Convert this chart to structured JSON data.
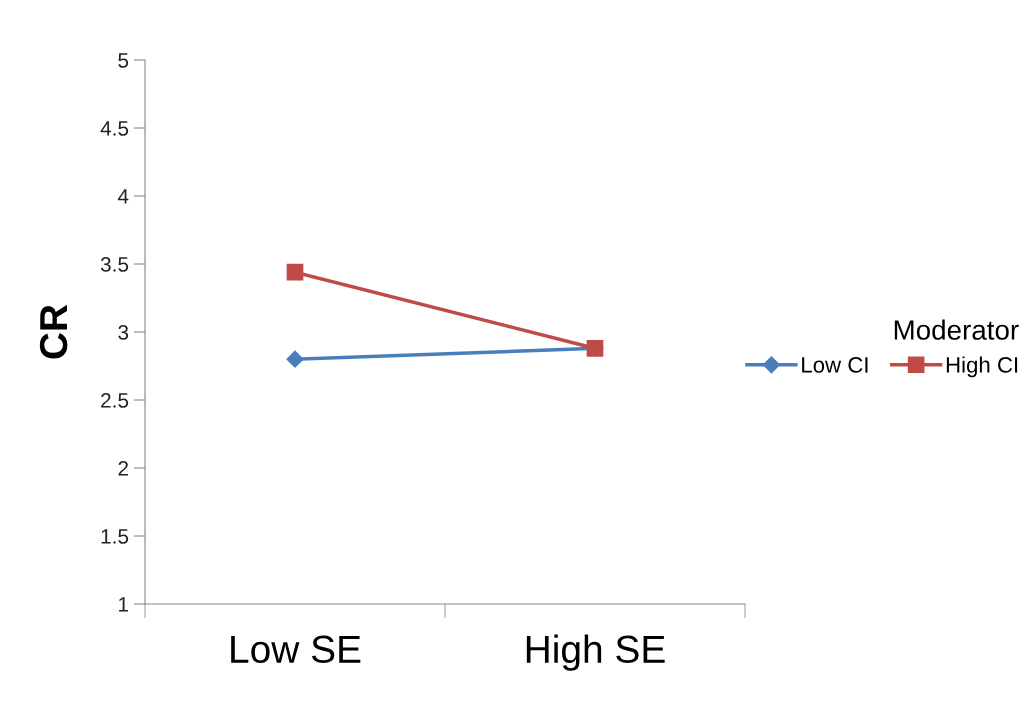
{
  "chart_data": {
    "type": "line",
    "ylabel": "CR",
    "legend_title": "Moderator",
    "categories": [
      "Low SE",
      "High SE"
    ],
    "series": [
      {
        "name": "Low CI",
        "color": "#4a7ebb",
        "marker": "diamond",
        "values": [
          2.8,
          2.88
        ]
      },
      {
        "name": "High CI",
        "color": "#be4b48",
        "marker": "square",
        "values": [
          3.44,
          2.88
        ]
      }
    ],
    "ylim": [
      1,
      5
    ],
    "yticks": [
      1,
      1.5,
      2,
      2.5,
      3,
      3.5,
      4,
      4.5,
      5
    ],
    "grid": false,
    "legend": "right",
    "line_style": "solid"
  }
}
